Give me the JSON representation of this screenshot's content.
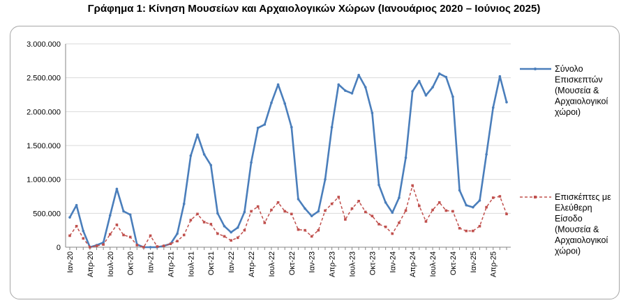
{
  "title": "Γράφημα 1: Κίνηση Μουσείων και Αρχαιολογικών Χώρων (Ιανουάριος 2020 – Ιούνιος 2025)",
  "chart_data": {
    "type": "line",
    "title": "Γράφημα 1: Κίνηση Μουσείων και Αρχαιολογικών Χώρων (Ιανουάριος 2020 – Ιούνιος 2025)",
    "xlabel": "",
    "ylabel": "",
    "ylim": [
      0,
      3000000
    ],
    "yticks": [
      "0",
      "500.000",
      "1.000.000",
      "1.500.000",
      "2.000.000",
      "2.500.000",
      "3.000.000"
    ],
    "xtick_labels": [
      "Ιαν-20",
      "Απρ-20",
      "Ιουλ-20",
      "Οκτ-20",
      "Ιαν-21",
      "Απρ-21",
      "Ιουλ-21",
      "Οκτ-21",
      "Ιαν-22",
      "Απρ-22",
      "Ιουλ-22",
      "Οκτ-22",
      "Ιαν-23",
      "Απρ-23",
      "Ιουλ-23",
      "Οκτ-23",
      "Ιαν-24",
      "Απρ-24",
      "Ιουλ-24",
      "Οκτ-24",
      "Ιαν-25",
      "Απρ-25"
    ],
    "grid": true,
    "legend_position": "right",
    "series": [
      {
        "name": "Σύνολο Επισκεπτών (Μουσεία & Αρχαιολογικοί χώροι)",
        "legend_lines": [
          "Σύνολο",
          "Επισκεπτών",
          "(Μουσεία &",
          "Αρχαιολογικοί",
          "χώροι)"
        ],
        "color": "#4a7ebb",
        "style": "solid",
        "values": [
          440000,
          620000,
          240000,
          0,
          30000,
          70000,
          470000,
          860000,
          530000,
          480000,
          40000,
          0,
          0,
          0,
          20000,
          50000,
          200000,
          640000,
          1350000,
          1660000,
          1370000,
          1210000,
          500000,
          310000,
          220000,
          290000,
          520000,
          1250000,
          1760000,
          1810000,
          2130000,
          2400000,
          2120000,
          1770000,
          710000,
          570000,
          460000,
          530000,
          1000000,
          1770000,
          2400000,
          2310000,
          2270000,
          2540000,
          2360000,
          1980000,
          920000,
          660000,
          510000,
          730000,
          1320000,
          2300000,
          2450000,
          2240000,
          2360000,
          2560000,
          2510000,
          2220000,
          840000,
          620000,
          590000,
          690000,
          1370000,
          2060000,
          2520000,
          2140000
        ]
      },
      {
        "name": "Επισκέπτες με Ελεύθερη Είσοδο (Μουσεία & Αρχαιολογικοί χώροι)",
        "legend_lines": [
          "Επισκέπτες με",
          "Ελεύθερη",
          "Είσοδο",
          "(Μουσεία &",
          "Αρχαιολογικοί",
          "χώροι)"
        ],
        "color": "#c0504d",
        "style": "dashed",
        "values": [
          170000,
          310000,
          130000,
          0,
          20000,
          40000,
          190000,
          330000,
          180000,
          150000,
          30000,
          0,
          170000,
          10000,
          20000,
          50000,
          90000,
          180000,
          400000,
          490000,
          370000,
          340000,
          200000,
          160000,
          100000,
          140000,
          250000,
          530000,
          600000,
          360000,
          550000,
          660000,
          530000,
          490000,
          260000,
          250000,
          160000,
          250000,
          540000,
          640000,
          740000,
          410000,
          570000,
          680000,
          520000,
          460000,
          340000,
          300000,
          200000,
          360000,
          540000,
          910000,
          610000,
          380000,
          550000,
          660000,
          540000,
          530000,
          280000,
          240000,
          240000,
          310000,
          590000,
          730000,
          750000,
          490000
        ]
      }
    ]
  }
}
